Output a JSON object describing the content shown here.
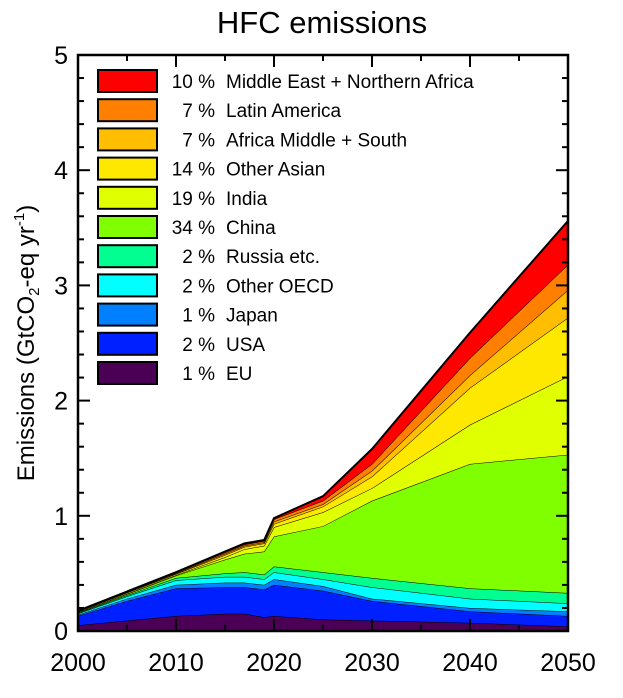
{
  "chart_data": {
    "type": "area",
    "stacked": true,
    "title": "HFC emissions",
    "xlabel": "",
    "ylabel_parts": [
      "Emissions (GtCO",
      "2",
      "-eq yr",
      "-1",
      ")"
    ],
    "xlim": [
      2000,
      2050
    ],
    "ylim": [
      0,
      5
    ],
    "xticks": [
      "2000",
      "2010",
      "2020",
      "2030",
      "2040",
      "2050"
    ],
    "yticks": [
      "0",
      "1",
      "2",
      "3",
      "4",
      "5"
    ],
    "grid": false,
    "legend_placement": "top-left",
    "x": [
      2000,
      2005,
      2010,
      2015,
      2017,
      2019,
      2020,
      2025,
      2030,
      2040,
      2050
    ],
    "series": [
      {
        "name": "EU",
        "share": "1 %",
        "color": "#4b0055",
        "values": [
          0.05,
          0.09,
          0.13,
          0.15,
          0.15,
          0.12,
          0.13,
          0.1,
          0.09,
          0.07,
          0.04
        ]
      },
      {
        "name": "USA",
        "share": "2 %",
        "color": "#0020ff",
        "values": [
          0.08,
          0.17,
          0.24,
          0.23,
          0.23,
          0.24,
          0.27,
          0.25,
          0.17,
          0.1,
          0.09
        ]
      },
      {
        "name": "Japan",
        "share": "1 %",
        "color": "#0080ff",
        "values": [
          0.01,
          0.02,
          0.03,
          0.04,
          0.04,
          0.04,
          0.05,
          0.04,
          0.02,
          0.03,
          0.04
        ]
      },
      {
        "name": "Other OECD",
        "share": "2 %",
        "color": "#00ffff",
        "values": [
          0.01,
          0.02,
          0.04,
          0.05,
          0.05,
          0.05,
          0.06,
          0.06,
          0.1,
          0.08,
          0.07
        ]
      },
      {
        "name": "Russia etc.",
        "share": "2 %",
        "color": "#00ff90",
        "values": [
          0.005,
          0.01,
          0.02,
          0.03,
          0.04,
          0.04,
          0.05,
          0.06,
          0.08,
          0.09,
          0.09
        ]
      },
      {
        "name": "China",
        "share": "34 %",
        "color": "#80ff00",
        "values": [
          0.005,
          0.01,
          0.02,
          0.12,
          0.16,
          0.2,
          0.26,
          0.4,
          0.67,
          1.08,
          1.2
        ]
      },
      {
        "name": "India",
        "share": "19 %",
        "color": "#e0ff00",
        "values": [
          0.003,
          0.004,
          0.005,
          0.02,
          0.04,
          0.05,
          0.08,
          0.12,
          0.11,
          0.34,
          0.68
        ]
      },
      {
        "name": "Other Asian",
        "share": "14 %",
        "color": "#ffe800",
        "values": [
          0.005,
          0.008,
          0.01,
          0.02,
          0.02,
          0.02,
          0.03,
          0.05,
          0.1,
          0.32,
          0.51
        ]
      },
      {
        "name": "Africa Middle + South",
        "share": "7 %",
        "color": "#ffbf00",
        "values": [
          0.002,
          0.003,
          0.004,
          0.01,
          0.01,
          0.01,
          0.02,
          0.02,
          0.05,
          0.11,
          0.24
        ]
      },
      {
        "name": "Latin America",
        "share": "7 %",
        "color": "#ff7f00",
        "values": [
          0.003,
          0.005,
          0.006,
          0.01,
          0.01,
          0.01,
          0.02,
          0.03,
          0.06,
          0.15,
          0.22
        ]
      },
      {
        "name": "Middle East + Northern Africa",
        "share": "10 %",
        "color": "#ff0000",
        "values": [
          0.002,
          0.003,
          0.005,
          0.01,
          0.01,
          0.01,
          0.01,
          0.04,
          0.13,
          0.22,
          0.38
        ]
      }
    ]
  }
}
